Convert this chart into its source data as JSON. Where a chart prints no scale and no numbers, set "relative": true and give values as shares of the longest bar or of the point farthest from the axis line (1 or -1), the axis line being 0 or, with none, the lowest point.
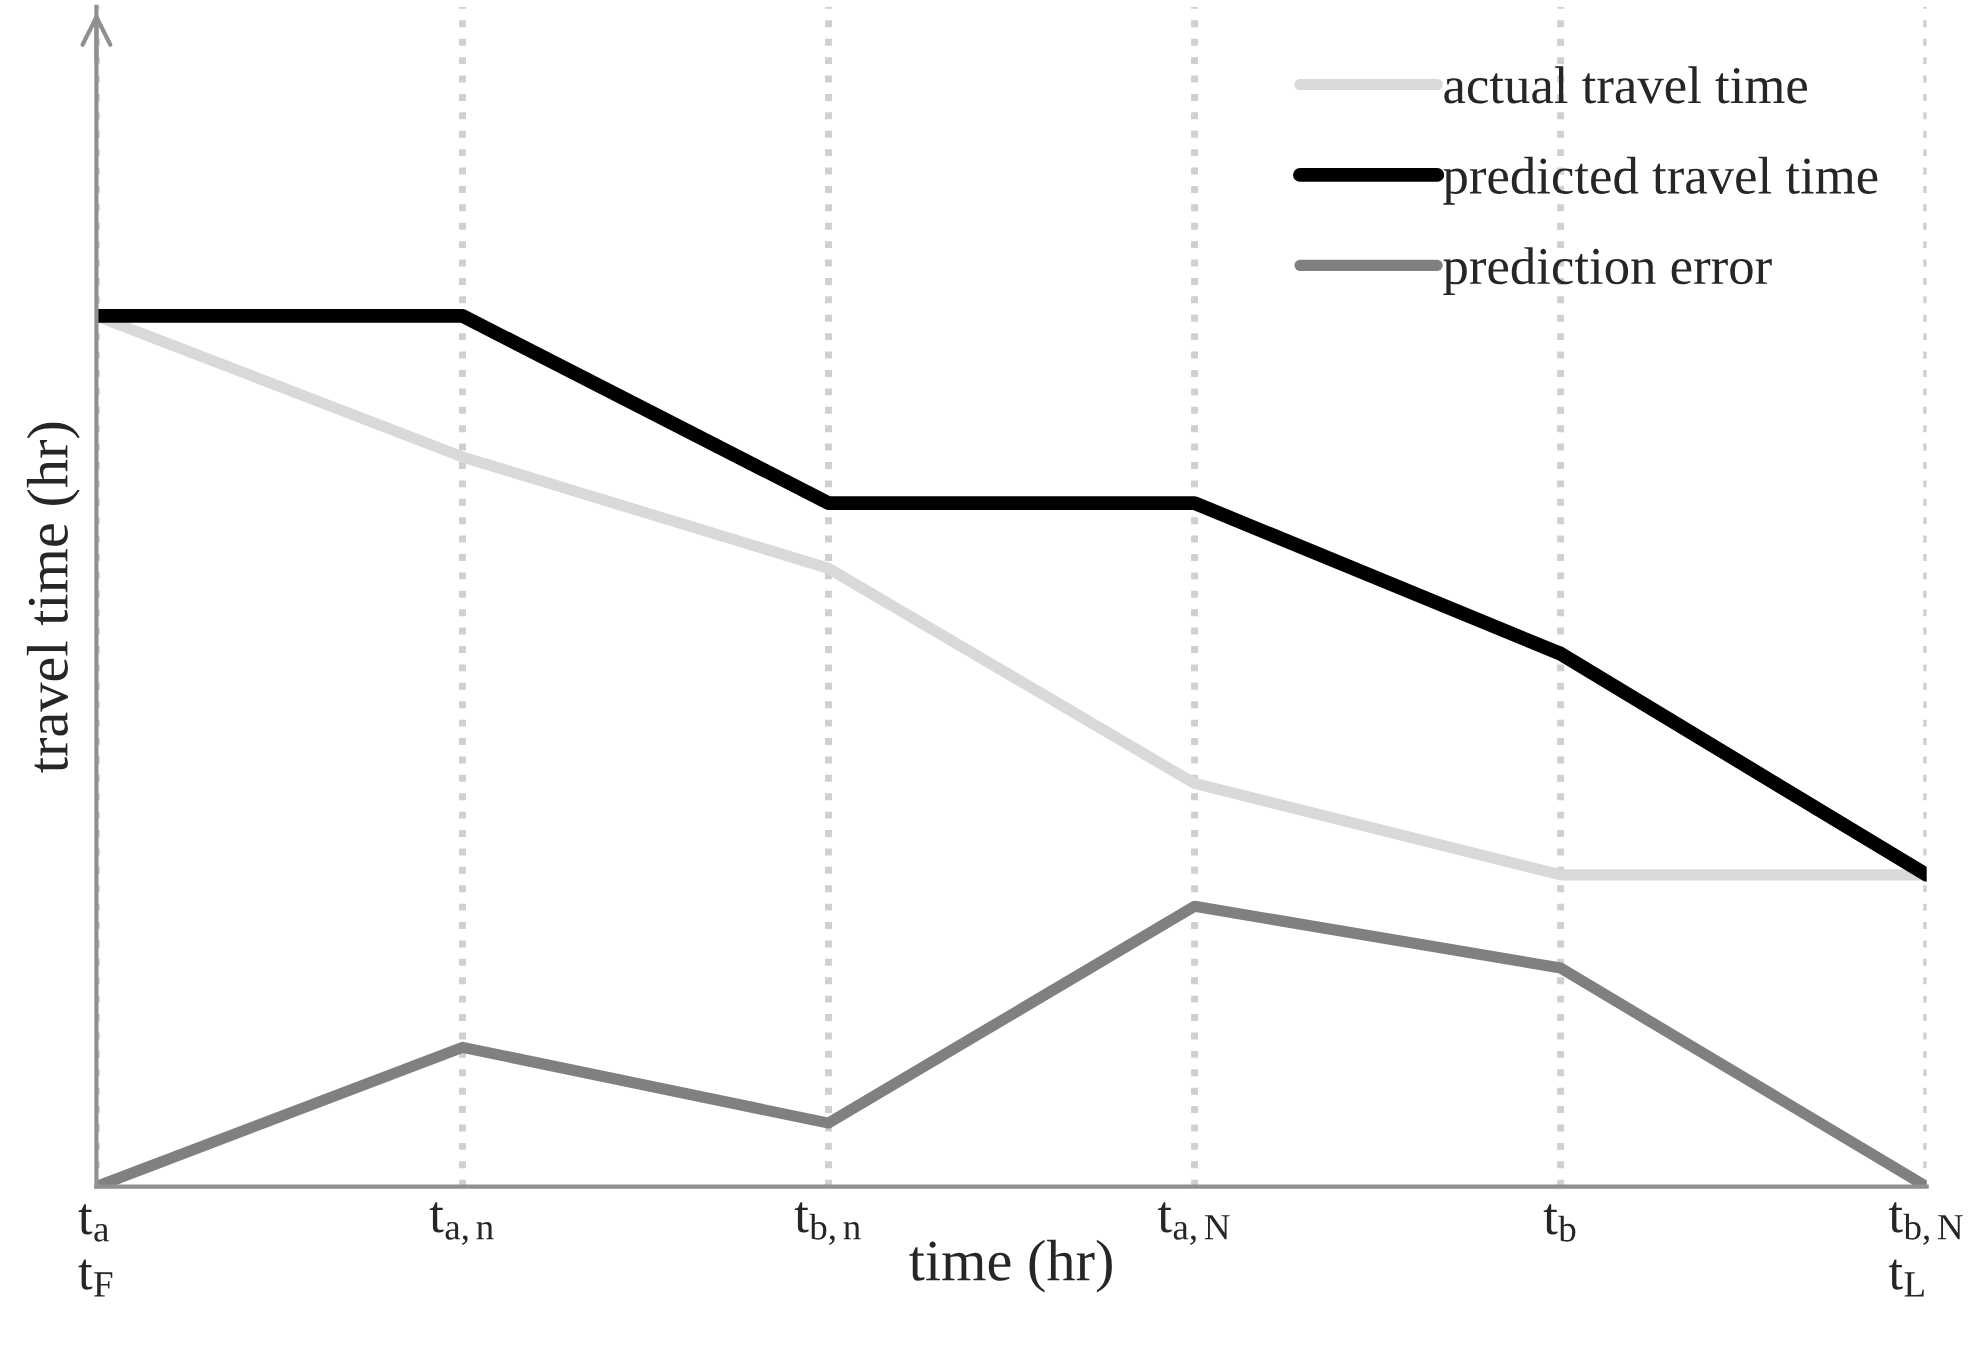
{
  "chart_data": {
    "type": "line",
    "relative": true,
    "xlabel": "time (hr)",
    "ylabel": "travel time (hr)",
    "categories": [
      "t$_{a}$\nt$_{F}$",
      "t$_{a,n}$",
      "t$_{b,n}$",
      "t$_{a,N}$",
      "t$_{b}$",
      "t$_{b,N}$\nt$_{L}$"
    ],
    "series": [
      {
        "name": "actual travel time",
        "color": "#d9d9d9",
        "values": [
          1,
          0.838,
          0.71,
          0.463,
          0.358,
          0.358
        ]
      },
      {
        "name": "predicted travel time",
        "color": "#000000",
        "values": [
          1,
          1,
          0.785,
          0.785,
          0.612,
          0.358
        ]
      },
      {
        "name": "prediction error",
        "color": "#808080",
        "values": [
          0,
          0.16,
          0.073,
          0.322,
          0.251,
          0
        ]
      }
    ],
    "grid": "x",
    "legend": "top right",
    "line_style": "solid",
    "marker": "none",
    "tick_labels": "x"
  }
}
